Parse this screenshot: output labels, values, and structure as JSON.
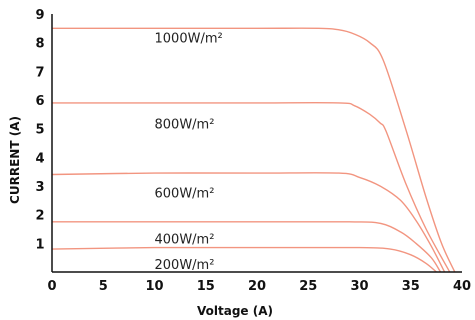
{
  "chart_data": {
    "type": "line",
    "title": "",
    "xlabel": "Voltage (A)",
    "ylabel": "CURRENT (A)",
    "xlim": [
      0,
      40
    ],
    "ylim": [
      0,
      9
    ],
    "xticks": [
      0,
      5,
      10,
      15,
      20,
      25,
      30,
      35,
      40
    ],
    "yticks": [
      1,
      2,
      3,
      4,
      5,
      6,
      7,
      8,
      9
    ],
    "grid": false,
    "legend": "none",
    "line_color": "#f29580",
    "series": [
      {
        "name": "1000W/m²",
        "x": [
          0,
          10,
          20,
          26,
          28,
          29.5,
          31,
          32.3,
          34.5,
          36.5,
          38,
          39.3
        ],
        "y": [
          8.5,
          8.5,
          8.5,
          8.5,
          8.45,
          8.3,
          8.0,
          7.4,
          5.0,
          2.6,
          1.0,
          0
        ]
      },
      {
        "name": "800W/m²",
        "x": [
          0,
          10,
          20,
          28,
          29.5,
          31,
          32,
          32.6,
          34.5,
          36.5,
          38.8
        ],
        "y": [
          5.9,
          5.9,
          5.9,
          5.9,
          5.8,
          5.5,
          5.2,
          4.9,
          3.1,
          1.5,
          0
        ]
      },
      {
        "name": "600W/m²",
        "x": [
          0,
          10,
          20,
          28,
          30,
          32,
          34,
          35.5,
          37,
          38.3
        ],
        "y": [
          3.4,
          3.45,
          3.45,
          3.45,
          3.3,
          3.0,
          2.5,
          1.8,
          0.9,
          0
        ]
      },
      {
        "name": "400W/m²",
        "x": [
          0,
          10,
          20,
          29,
          32,
          34,
          35.5,
          37,
          37.9
        ],
        "y": [
          1.75,
          1.75,
          1.75,
          1.75,
          1.7,
          1.4,
          1.0,
          0.5,
          0
        ]
      },
      {
        "name": "200W/m²",
        "x": [
          0,
          10,
          20,
          30,
          33,
          35,
          36.5,
          37.5
        ],
        "y": [
          0.8,
          0.85,
          0.85,
          0.85,
          0.8,
          0.6,
          0.3,
          0
        ]
      }
    ],
    "series_labels": [
      {
        "text": "1000W/m²",
        "x": 10,
        "y": 8.0
      },
      {
        "text": "800W/m²",
        "x": 10,
        "y": 5.0
      },
      {
        "text": "600W/m²",
        "x": 10,
        "y": 2.6
      },
      {
        "text": "400W/m²",
        "x": 10,
        "y": 1.0
      },
      {
        "text": "200W/m²",
        "x": 10,
        "y": 0.1
      }
    ]
  }
}
